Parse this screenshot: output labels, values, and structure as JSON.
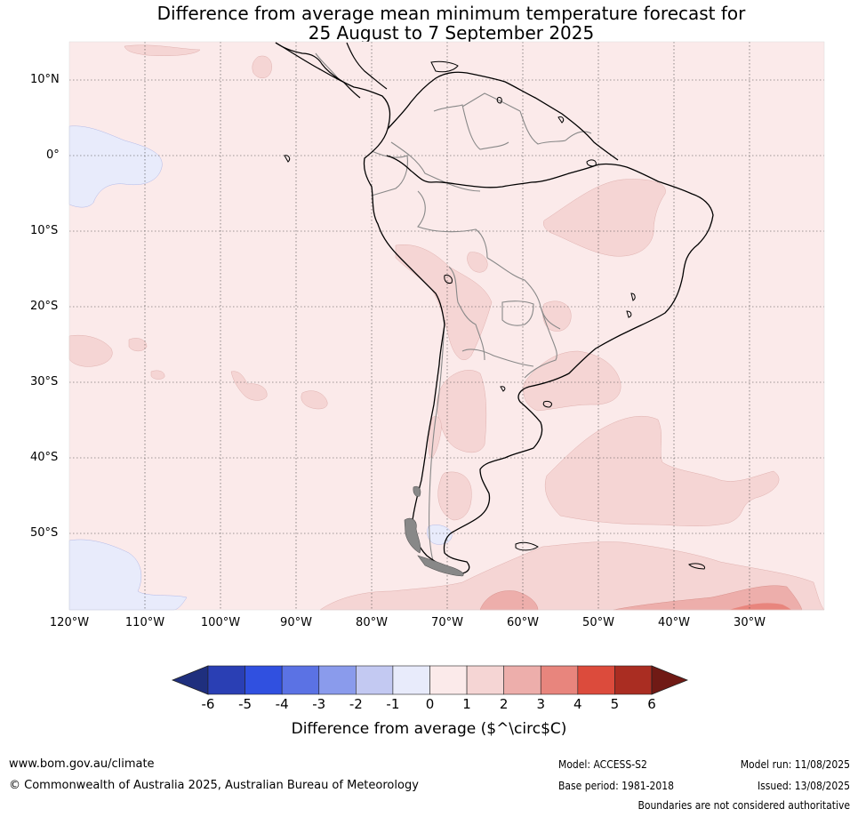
{
  "title": {
    "line1": "Difference from average mean minimum temperature forecast for",
    "line2": "25 August to 7 September 2025"
  },
  "map": {
    "lat_labels": [
      "10°N",
      "0°",
      "10°S",
      "20°S",
      "30°S",
      "40°S",
      "50°S"
    ],
    "lon_labels": [
      "120°W",
      "110°W",
      "100°W",
      "90°W",
      "80°W",
      "70°W",
      "60°W",
      "50°W",
      "40°W",
      "30°W"
    ]
  },
  "colorbar": {
    "ticks": [
      "-6",
      "-5",
      "-4",
      "-3",
      "-2",
      "-1",
      "0",
      "1",
      "2",
      "3",
      "4",
      "5",
      "6"
    ],
    "colors": [
      "#1f2f7e",
      "#2a3fb4",
      "#3050e0",
      "#5b72e4",
      "#8a9bec",
      "#c3c9f2",
      "#e8ebfb",
      "#fbeaea",
      "#f5d5d4",
      "#edaeab",
      "#e8857d",
      "#dc4b3c",
      "#aa2d22",
      "#701a15"
    ],
    "label": "Difference from average ($^\\circ$C)"
  },
  "footer": {
    "website": "www.bom.gov.au/climate",
    "copyright": "© Commonwealth of Australia 2025, Australian Bureau of Meteorology",
    "model": "Model: ACCESS-S2",
    "base_period": "Base period: 1981-2018",
    "model_run": "Model run: 11/08/2025",
    "issued": "Issued: 13/08/2025",
    "disclaimer": "Boundaries are not considered authoritative"
  }
}
